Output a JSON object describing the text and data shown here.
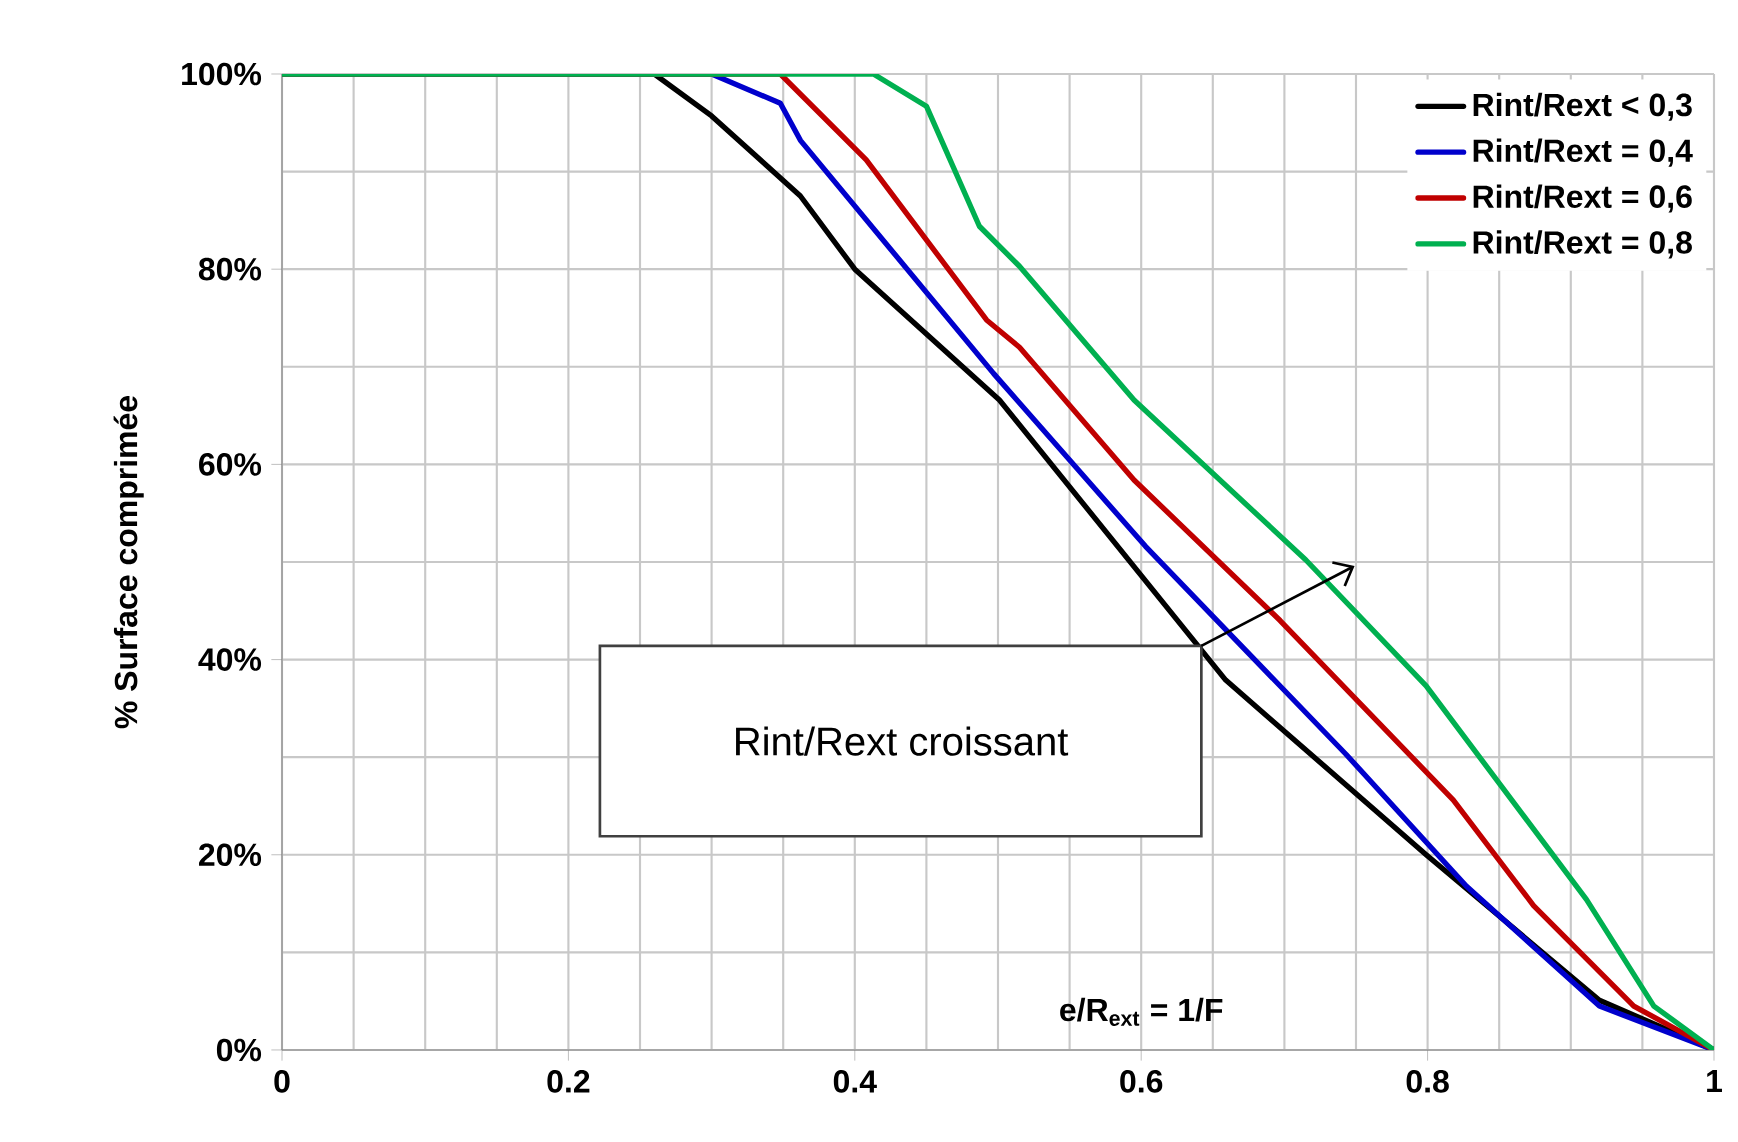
{
  "chart_data": {
    "type": "line",
    "xlabel": "e/R$_{ext}$ = 1/F",
    "ylabel": "% Surface comprimée",
    "xlim": [
      0,
      1
    ],
    "ylim": [
      0,
      100
    ],
    "xticks": [
      0,
      0.2,
      0.4,
      0.6,
      0.8,
      1
    ],
    "yticks": [
      {
        "value": 0,
        "label": "0%"
      },
      {
        "value": 20,
        "label": "20%"
      },
      {
        "value": 40,
        "label": "40%"
      },
      {
        "value": 60,
        "label": "60%"
      },
      {
        "value": 80,
        "label": "80%"
      },
      {
        "value": 100,
        "label": "100%"
      }
    ],
    "grid": true,
    "legend": "top right",
    "marker": "none",
    "line_style": "solid",
    "annotations": [
      "Rint/Rext croissant"
    ],
    "series": [
      {
        "name": "Rint/Rext < 0,3",
        "color": "#000000",
        "x": [
          0,
          0.26,
          0.3,
          0.362,
          0.4,
          0.501,
          0.659,
          0.799,
          0.92,
          1
        ],
        "values": [
          100,
          100,
          95.7,
          87.5,
          80,
          66.6,
          37.9,
          20,
          5.1,
          0
        ]
      },
      {
        "name": "Rint/Rext = 0,4",
        "color": "#0000cc",
        "x": [
          0,
          0.3,
          0.348,
          0.362,
          0.497,
          0.603,
          0.743,
          0.827,
          0.92,
          1
        ],
        "values": [
          100,
          100,
          97,
          93.2,
          69.3,
          51.6,
          30.3,
          16.8,
          4.5,
          0
        ]
      },
      {
        "name": "Rint/Rext = 0,6",
        "color": "#c00000",
        "x": [
          0,
          0.348,
          0.408,
          0.45,
          0.492,
          0.515,
          0.595,
          0.697,
          0.818,
          0.874,
          0.944,
          1
        ],
        "values": [
          100,
          100,
          91.2,
          83,
          74.8,
          72,
          58.4,
          44,
          25.6,
          14.8,
          4.5,
          0
        ]
      },
      {
        "name": "Rint/Rext = 0,8",
        "color": "#00b050",
        "x": [
          0,
          0.413,
          0.45,
          0.487,
          0.515,
          0.595,
          0.715,
          0.799,
          0.911,
          0.958,
          1
        ],
        "values": [
          100,
          100,
          96.7,
          84.4,
          80.3,
          66.6,
          50.2,
          37.3,
          15.4,
          4.5,
          0
        ]
      }
    ]
  }
}
